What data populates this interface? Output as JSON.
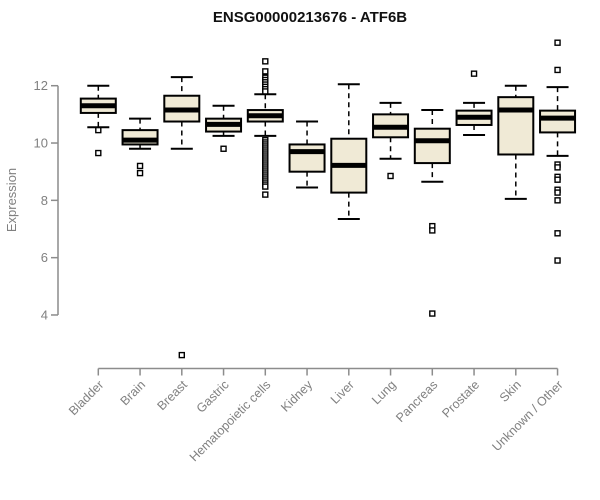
{
  "chart_data": {
    "type": "boxplot",
    "title": "ENSG00000213676 - ATF6B",
    "ylabel": "Expression",
    "yticks": [
      4,
      6,
      8,
      10,
      12
    ],
    "ylim": [
      4,
      12
    ],
    "grid": false,
    "legend": "none",
    "categories": [
      "Bladder",
      "Brain",
      "Breast",
      "Gastric",
      "Hematopoietic cells",
      "Kidney",
      "Liver",
      "Lung",
      "Pancreas",
      "Prostate",
      "Skin",
      "Unknown / Other"
    ],
    "boxes": [
      {
        "category": "Bladder",
        "whisker_low": 10.55,
        "q1": 11.05,
        "median": 11.3,
        "q3": 11.55,
        "whisker_high": 12.0,
        "outliers": [
          10.45,
          9.65
        ]
      },
      {
        "category": "Brain",
        "whisker_low": 9.8,
        "q1": 9.95,
        "median": 10.1,
        "q3": 10.45,
        "whisker_high": 10.85,
        "outliers": [
          9.2,
          8.95
        ]
      },
      {
        "category": "Breast",
        "whisker_low": 9.8,
        "q1": 10.75,
        "median": 11.15,
        "q3": 11.65,
        "whisker_high": 12.3,
        "outliers": [
          2.6
        ]
      },
      {
        "category": "Gastric",
        "whisker_low": 10.25,
        "q1": 10.4,
        "median": 10.65,
        "q3": 10.85,
        "whisker_high": 11.3,
        "outliers": [
          9.8
        ]
      },
      {
        "category": "Hematopoietic cells",
        "whisker_low": 10.25,
        "q1": 10.75,
        "median": 10.95,
        "q3": 11.15,
        "whisker_high": 11.7,
        "outliers": [
          12.85,
          12.5,
          12.28,
          12.2,
          12.12,
          12.04,
          11.96,
          11.88,
          11.8,
          10.1,
          10.02,
          9.95,
          9.88,
          9.81,
          9.74,
          9.67,
          9.6,
          9.53,
          9.46,
          9.39,
          9.32,
          9.25,
          9.18,
          9.11,
          9.04,
          8.97,
          8.9,
          8.83,
          8.76,
          8.69,
          8.62,
          8.55,
          8.48,
          8.2
        ]
      },
      {
        "category": "Kidney",
        "whisker_low": 8.45,
        "q1": 9.0,
        "median": 9.7,
        "q3": 9.95,
        "whisker_high": 10.75,
        "outliers": []
      },
      {
        "category": "Liver",
        "whisker_low": 7.35,
        "q1": 8.27,
        "median": 9.22,
        "q3": 10.15,
        "whisker_high": 12.05,
        "outliers": []
      },
      {
        "category": "Lung",
        "whisker_low": 9.45,
        "q1": 10.2,
        "median": 10.55,
        "q3": 11.0,
        "whisker_high": 11.4,
        "outliers": [
          8.85
        ]
      },
      {
        "category": "Pancreas",
        "whisker_low": 8.65,
        "q1": 9.3,
        "median": 10.08,
        "q3": 10.5,
        "whisker_high": 11.15,
        "outliers": [
          7.1,
          6.95,
          4.05
        ]
      },
      {
        "category": "Prostate",
        "whisker_low": 10.28,
        "q1": 10.63,
        "median": 10.9,
        "q3": 11.13,
        "whisker_high": 11.4,
        "outliers": [
          12.42
        ]
      },
      {
        "category": "Skin",
        "whisker_low": 8.05,
        "q1": 9.6,
        "median": 11.15,
        "q3": 11.6,
        "whisker_high": 12.0,
        "outliers": []
      },
      {
        "category": "Unknown / Other",
        "whisker_low": 9.55,
        "q1": 10.37,
        "median": 10.87,
        "q3": 11.13,
        "whisker_high": 11.95,
        "outliers": [
          13.5,
          12.55,
          9.25,
          9.15,
          8.82,
          8.72,
          8.37,
          8.27,
          8.0,
          6.85,
          5.9
        ]
      }
    ],
    "colors": {
      "box_fill": "#F0EAD6",
      "box_stroke": "#000000",
      "axis": "#8C8C8C",
      "text_gray": "#808080",
      "title": "#111111",
      "outlier_fill": "#FFFFFF"
    }
  }
}
